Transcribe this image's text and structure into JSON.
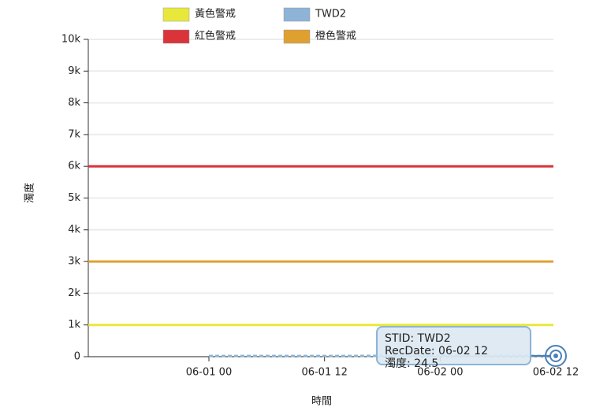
{
  "chart_data": {
    "type": "line",
    "x_label": "時間",
    "y_label": "濁度",
    "ylim": [
      0,
      10000
    ],
    "yticks": [
      0,
      {
        "value": 1000,
        "label": "1k"
      },
      {
        "value": 2000,
        "label": "2k"
      },
      {
        "value": 3000,
        "label": "3k"
      },
      {
        "value": 4000,
        "label": "4k"
      },
      {
        "value": 5000,
        "label": "5k"
      },
      {
        "value": 6000,
        "label": "6k"
      },
      {
        "value": 7000,
        "label": "7k"
      },
      {
        "value": 8000,
        "label": "8k"
      },
      {
        "value": 9000,
        "label": "9k"
      },
      {
        "value": 10000,
        "label": "10k"
      }
    ],
    "xlim": [
      "06-01 00",
      "06-02 12"
    ],
    "xticks": [
      "06-01 00",
      "06-01 12",
      "06-02 00",
      "06-02 12"
    ],
    "grid": true,
    "thresholds": [
      {
        "name": "黃色警戒",
        "color": "#e8e83a",
        "value": 1000
      },
      {
        "name": "紅色警戒",
        "color": "#d9343a",
        "value": 6000
      },
      {
        "name": "橙色警戒",
        "color": "#e0a030",
        "value": 3000
      }
    ],
    "series": [
      {
        "name": "TWD2",
        "color": "#8db4d6",
        "x": [
          "06-01 00",
          "06-01 12",
          "06-02 00",
          "06-02 12"
        ],
        "values": [
          22,
          23,
          24,
          24.5
        ]
      }
    ],
    "tooltip": {
      "lines": [
        "STID: TWD2",
        "RecDate: 06-02 12",
        "濁度: 24.5"
      ]
    }
  }
}
